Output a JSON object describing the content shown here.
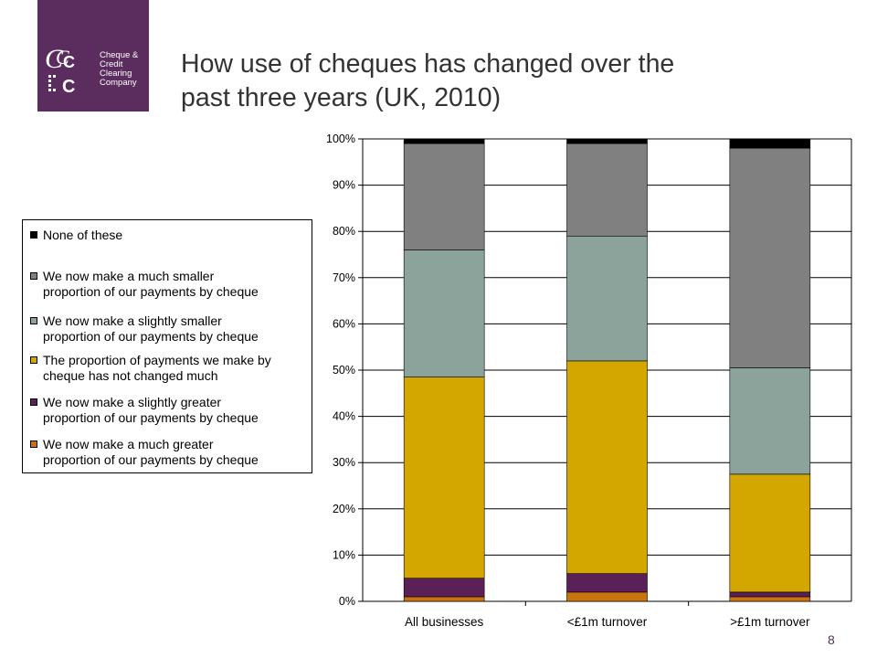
{
  "logo": {
    "lines": [
      "Cheque &",
      "Credit",
      "Clearing",
      "Company"
    ],
    "background": "#5b2d5e"
  },
  "title": {
    "line1": "How use of cheques has changed over the",
    "line2": "past three years (UK, 2010)"
  },
  "page_number": "8",
  "chart_data": {
    "type": "bar",
    "stacked": true,
    "percent_stacked": true,
    "title": "",
    "xlabel": "",
    "ylabel": "",
    "categories": [
      "All businesses",
      "<£1m turnover",
      ">£1m turnover"
    ],
    "ylim": [
      0,
      100
    ],
    "yticks": [
      "0%",
      "10%",
      "20%",
      "30%",
      "40%",
      "50%",
      "60%",
      "70%",
      "80%",
      "90%",
      "100%"
    ],
    "grid": true,
    "legend_position": "left",
    "series": [
      {
        "name": "We now make a much greater proportion of our payments by cheque",
        "color": "#c8730f",
        "values": [
          1,
          2,
          1
        ]
      },
      {
        "name": "We now make a slightly greater proportion of our payments by cheque",
        "color": "#5b2058",
        "values": [
          4,
          4,
          1
        ]
      },
      {
        "name": "The proportion of payments we make by cheque has not changed much",
        "color": "#d4a600",
        "values": [
          43.5,
          46,
          25.5
        ]
      },
      {
        "name": "We now make a slightly smaller proportion of our payments by cheque",
        "color": "#8ba39b",
        "values": [
          27.5,
          27,
          23
        ]
      },
      {
        "name": "We now make a much smaller proportion of our payments by cheque",
        "color": "#808080",
        "values": [
          23,
          20,
          47.5
        ]
      },
      {
        "name": "None of these",
        "color": "#000000",
        "values": [
          1,
          1,
          2
        ]
      }
    ],
    "legend_order": [
      5,
      4,
      3,
      2,
      1,
      0
    ],
    "legend_lines": [
      [
        "None of these"
      ],
      [
        "We now make a much smaller",
        "proportion of our payments by cheque"
      ],
      [
        "We now make a slightly smaller",
        "proportion of our payments by cheque"
      ],
      [
        "The proportion of payments we make by",
        "cheque has not changed much"
      ],
      [
        "We now make a slightly greater",
        "proportion of our payments by cheque"
      ],
      [
        "We now make a much greater",
        "proportion of our payments by cheque"
      ]
    ]
  }
}
